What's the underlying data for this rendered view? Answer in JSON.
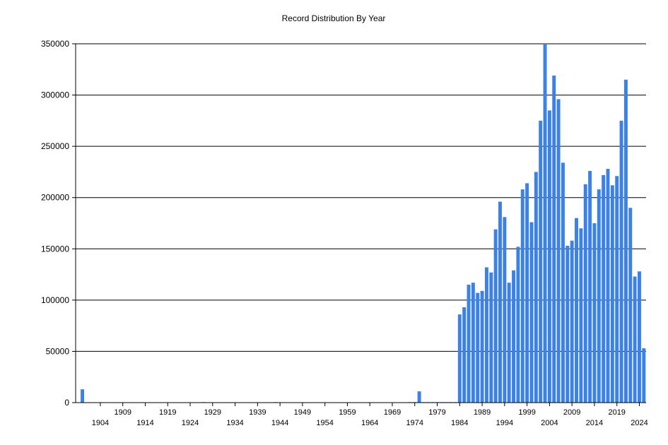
{
  "chart_data": {
    "type": "bar",
    "title": "Record Distribution By Year",
    "xlabel": "",
    "ylabel": "",
    "ylim": [
      0,
      350000
    ],
    "yticks": [
      0,
      50000,
      100000,
      150000,
      200000,
      250000,
      300000,
      350000
    ],
    "ytick_labels": [
      "0",
      "50000",
      "100000",
      "150000",
      "200000",
      "250000",
      "300000",
      "350000"
    ],
    "x_start": 1899,
    "x_end": 2025,
    "xtick_labels_upper": [
      "1909",
      "1919",
      "1929",
      "1939",
      "1949",
      "1959",
      "1969",
      "1979",
      "1989",
      "1999",
      "2009",
      "2019"
    ],
    "xtick_labels_lower": [
      "1904",
      "1914",
      "1924",
      "1934",
      "1944",
      "1954",
      "1964",
      "1974",
      "1984",
      "1994",
      "2004",
      "2014",
      "2024"
    ],
    "grid": true,
    "legend": "none",
    "bar_color": "#3c82e6",
    "series": [
      {
        "x": [
          1900,
          1927,
          1943,
          1973,
          1974,
          1975,
          1976,
          1977,
          1978,
          1979,
          1980,
          1981,
          1982,
          1983,
          1984,
          1985,
          1986,
          1987,
          1988,
          1989,
          1990,
          1991,
          1992,
          1993,
          1994,
          1995,
          1996,
          1997,
          1998,
          1999,
          2000,
          2001,
          2002,
          2003,
          2004,
          2005,
          2006,
          2007,
          2008,
          2009,
          2010,
          2011,
          2012,
          2013,
          2014,
          2015,
          2016,
          2017,
          2018,
          2019,
          2020,
          2021,
          2022,
          2023,
          2024
        ],
        "values": [
          13000,
          500,
          500,
          500,
          500,
          11000,
          500,
          500,
          500,
          500,
          500,
          500,
          500,
          500,
          86000,
          93000,
          115000,
          117000,
          107000,
          109000,
          132000,
          127000,
          169000,
          196000,
          181000,
          117000,
          129000,
          152000,
          208000,
          214000,
          176000,
          225000,
          275000,
          350000,
          285000,
          319000,
          296000,
          234000,
          153000,
          158000,
          180000,
          170000,
          213000,
          226000,
          175000,
          208000,
          222000,
          228000,
          212000,
          221000,
          275000,
          315000,
          190000,
          123000,
          128000
        ]
      }
    ],
    "last_bar": {
      "x": 2025,
      "value": 53000
    }
  }
}
